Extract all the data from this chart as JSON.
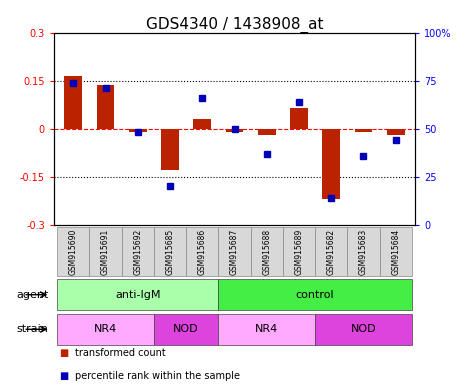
{
  "title": "GDS4340 / 1438908_at",
  "samples": [
    "GSM915690",
    "GSM915691",
    "GSM915692",
    "GSM915685",
    "GSM915686",
    "GSM915687",
    "GSM915688",
    "GSM915689",
    "GSM915682",
    "GSM915683",
    "GSM915684"
  ],
  "bar_values": [
    0.165,
    0.135,
    -0.01,
    -0.13,
    0.03,
    -0.01,
    -0.02,
    0.065,
    -0.22,
    -0.01,
    -0.02
  ],
  "dot_values": [
    74,
    71,
    48,
    20,
    66,
    50,
    37,
    64,
    14,
    36,
    44
  ],
  "bar_color": "#bb2200",
  "dot_color": "#0000bb",
  "ylim": [
    -0.3,
    0.3
  ],
  "y2lim": [
    0,
    100
  ],
  "yticks": [
    -0.3,
    -0.15,
    0,
    0.15,
    0.3
  ],
  "y2ticks": [
    0,
    25,
    50,
    75,
    100
  ],
  "ytick_labels": [
    "-0.3",
    "-0.15",
    "0",
    "0.15",
    "0.3"
  ],
  "y2tick_labels": [
    "0",
    "25",
    "50",
    "75",
    "100%"
  ],
  "agent_groups": [
    {
      "label": "anti-IgM",
      "start": 0,
      "end": 5,
      "color": "#aaffaa"
    },
    {
      "label": "control",
      "start": 5,
      "end": 11,
      "color": "#44ee44"
    }
  ],
  "strain_groups": [
    {
      "label": "NR4",
      "start": 0,
      "end": 3,
      "color": "#ffaaff"
    },
    {
      "label": "NOD",
      "start": 3,
      "end": 5,
      "color": "#dd44dd"
    },
    {
      "label": "NR4",
      "start": 5,
      "end": 8,
      "color": "#ffaaff"
    },
    {
      "label": "NOD",
      "start": 8,
      "end": 11,
      "color": "#dd44dd"
    }
  ],
  "legend_items": [
    {
      "label": "transformed count",
      "color": "#bb2200"
    },
    {
      "label": "percentile rank within the sample",
      "color": "#0000bb"
    }
  ],
  "agent_label": "agent",
  "strain_label": "strain",
  "bar_width": 0.55,
  "tick_fontsize": 7,
  "sample_fontsize": 5.5,
  "label_fontsize": 8,
  "group_label_fontsize": 8,
  "title_fontsize": 11,
  "bg_color": "#ffffff",
  "tick_bg": "#d8d8d8"
}
